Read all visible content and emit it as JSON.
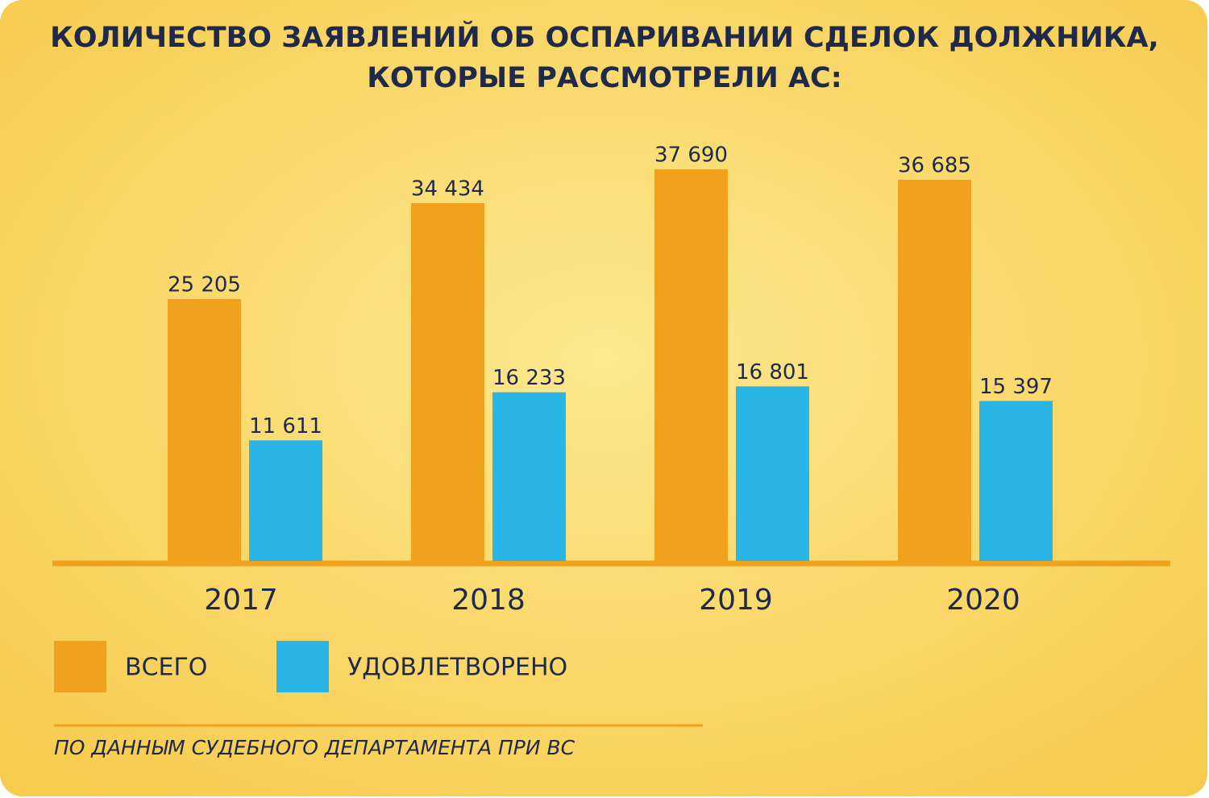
{
  "chart_data": {
    "type": "bar",
    "title": [
      "КОЛИЧЕСТВО ЗАЯВЛЕНИЙ ОБ ОСПАРИВАНИИ СДЕЛОК ДОЛЖНИКА,",
      "КОТОРЫЕ РАССМОТРЕЛИ АС:"
    ],
    "categories": [
      "2017",
      "2018",
      "2019",
      "2020"
    ],
    "series": [
      {
        "name": "ВСЕГО",
        "color": "#f0a21f",
        "values": [
          25205,
          34434,
          37690,
          36685
        ],
        "value_labels": [
          "25 205",
          "34 434",
          "37 690",
          "36 685"
        ]
      },
      {
        "name": "УДОВЛЕТВОРЕНО",
        "color": "#29b5e6",
        "values": [
          11611,
          16233,
          16801,
          15397
        ],
        "value_labels": [
          "11 611",
          "16 233",
          "16 801",
          "15 397"
        ]
      }
    ],
    "source": "ПО ДАННЫМ СУДЕБНОГО ДЕПАРТАМЕНТА ПРИ ВС"
  }
}
